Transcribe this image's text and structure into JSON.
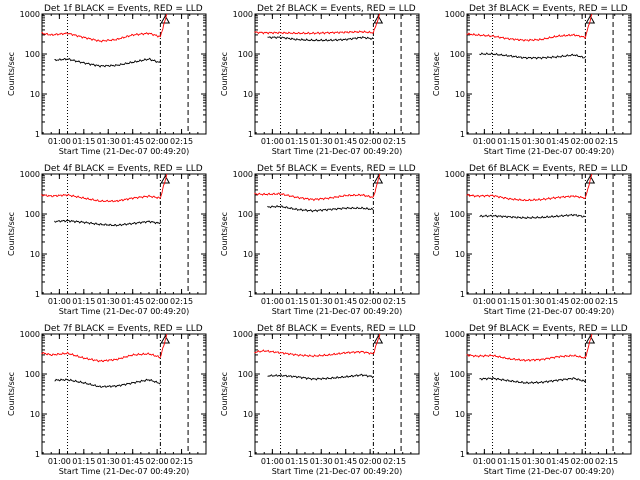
{
  "figure": {
    "xlabel": "Start Time (21-Dec-07 00:49:20)",
    "ylabel": "Counts/sec",
    "xtick_labels": [
      "01:00",
      "01:15",
      "01:30",
      "01:45",
      "02:00",
      "02:15"
    ],
    "ytick_labels": [
      "1",
      "10",
      "100",
      "1000"
    ],
    "colors": {
      "events": "#000000",
      "lld": "#ff0000",
      "axes": "#000000"
    }
  },
  "chart_data": [
    {
      "type": "line",
      "title": "Det 1f BLACK = Events, RED = LLD",
      "xlabel": "Start Time (21-Dec-07 00:49:20)",
      "ylabel": "Counts/sec",
      "y_scale": "log",
      "ylim": [
        1,
        1000
      ],
      "xlim": [
        "00:49:20",
        "02:30"
      ],
      "xticks": [
        "01:00",
        "01:15",
        "01:30",
        "01:45",
        "02:00",
        "02:15"
      ],
      "series": [
        {
          "name": "Events",
          "color": "#000000",
          "x": [
            "00:57",
            "01:05",
            "01:15",
            "01:25",
            "01:35",
            "01:45",
            "01:55",
            "02:02"
          ],
          "values": [
            70,
            75,
            60,
            50,
            52,
            62,
            75,
            60
          ]
        },
        {
          "name": "LLD",
          "color": "#ff0000",
          "x": [
            "00:49",
            "00:55",
            "01:05",
            "01:15",
            "01:25",
            "01:35",
            "01:45",
            "01:55",
            "02:02",
            "02:06"
          ],
          "values": [
            330,
            300,
            330,
            260,
            210,
            230,
            300,
            330,
            270,
            1000
          ]
        }
      ]
    },
    {
      "type": "line",
      "title": "Det 2f BLACK = Events, RED = LLD",
      "xlabel": "Start Time (21-Dec-07 00:49:20)",
      "ylabel": "Counts/sec",
      "y_scale": "log",
      "ylim": [
        1,
        1000
      ],
      "xlim": [
        "00:49:20",
        "02:30"
      ],
      "xticks": [
        "01:00",
        "01:15",
        "01:30",
        "01:45",
        "02:00",
        "02:15"
      ],
      "series": [
        {
          "name": "Events",
          "color": "#000000",
          "x": [
            "00:57",
            "01:05",
            "01:15",
            "01:25",
            "01:35",
            "01:45",
            "01:55",
            "02:02"
          ],
          "values": [
            260,
            260,
            230,
            220,
            220,
            230,
            260,
            240
          ]
        },
        {
          "name": "LLD",
          "color": "#ff0000",
          "x": [
            "00:49",
            "00:55",
            "01:05",
            "01:15",
            "01:25",
            "01:35",
            "01:45",
            "01:55",
            "02:02",
            "02:06"
          ],
          "values": [
            350,
            340,
            340,
            330,
            330,
            340,
            350,
            360,
            340,
            1000
          ]
        }
      ]
    },
    {
      "type": "line",
      "title": "Det 3f BLACK = Events, RED = LLD",
      "xlabel": "Start Time (21-Dec-07 00:49:20)",
      "ylabel": "Counts/sec",
      "y_scale": "log",
      "ylim": [
        1,
        1000
      ],
      "xlim": [
        "00:49:20",
        "02:30"
      ],
      "xticks": [
        "01:00",
        "01:15",
        "01:30",
        "01:45",
        "02:00",
        "02:15"
      ],
      "series": [
        {
          "name": "Events",
          "color": "#000000",
          "x": [
            "00:57",
            "01:05",
            "01:15",
            "01:25",
            "01:35",
            "01:45",
            "01:55",
            "02:02"
          ],
          "values": [
            100,
            100,
            90,
            80,
            80,
            85,
            95,
            80
          ]
        },
        {
          "name": "LLD",
          "color": "#ff0000",
          "x": [
            "00:49",
            "00:55",
            "01:05",
            "01:15",
            "01:25",
            "01:35",
            "01:45",
            "01:55",
            "02:02",
            "02:06"
          ],
          "values": [
            320,
            300,
            280,
            240,
            220,
            230,
            280,
            300,
            260,
            1000
          ]
        }
      ]
    },
    {
      "type": "line",
      "title": "Det 4f BLACK = Events, RED = LLD",
      "xlabel": "Start Time (21-Dec-07 00:49:20)",
      "ylabel": "Counts/sec",
      "y_scale": "log",
      "ylim": [
        1,
        1000
      ],
      "xlim": [
        "00:49:20",
        "02:30"
      ],
      "xticks": [
        "01:00",
        "01:15",
        "01:30",
        "01:45",
        "02:00",
        "02:15"
      ],
      "series": [
        {
          "name": "Events",
          "color": "#000000",
          "x": [
            "00:57",
            "01:05",
            "01:15",
            "01:25",
            "01:35",
            "01:45",
            "01:55",
            "02:02"
          ],
          "values": [
            65,
            68,
            62,
            55,
            52,
            58,
            65,
            58
          ]
        },
        {
          "name": "LLD",
          "color": "#ff0000",
          "x": [
            "00:49",
            "00:55",
            "01:05",
            "01:15",
            "01:25",
            "01:35",
            "01:45",
            "01:55",
            "02:02",
            "02:06"
          ],
          "values": [
            300,
            280,
            300,
            250,
            210,
            210,
            250,
            280,
            250,
            1000
          ]
        }
      ]
    },
    {
      "type": "line",
      "title": "Det 5f BLACK = Events, RED = LLD",
      "xlabel": "Start Time (21-Dec-07 00:49:20)",
      "ylabel": "Counts/sec",
      "y_scale": "log",
      "ylim": [
        1,
        1000
      ],
      "xlim": [
        "00:49:20",
        "02:30"
      ],
      "xticks": [
        "01:00",
        "01:15",
        "01:30",
        "01:45",
        "02:00",
        "02:15"
      ],
      "series": [
        {
          "name": "Events",
          "color": "#000000",
          "x": [
            "00:57",
            "01:05",
            "01:15",
            "01:25",
            "01:35",
            "01:45",
            "01:55",
            "02:02"
          ],
          "values": [
            150,
            155,
            130,
            120,
            130,
            140,
            140,
            130
          ]
        },
        {
          "name": "LLD",
          "color": "#ff0000",
          "x": [
            "00:49",
            "00:55",
            "01:05",
            "01:15",
            "01:25",
            "01:35",
            "01:45",
            "01:55",
            "02:02",
            "02:06"
          ],
          "values": [
            320,
            310,
            320,
            260,
            230,
            250,
            290,
            300,
            260,
            1000
          ]
        }
      ]
    },
    {
      "type": "line",
      "title": "Det 6f BLACK = Events, RED = LLD",
      "xlabel": "Start Time (21-Dec-07 00:49:20)",
      "ylabel": "Counts/sec",
      "y_scale": "log",
      "ylim": [
        1,
        1000
      ],
      "xlim": [
        "00:49:20",
        "02:30"
      ],
      "xticks": [
        "01:00",
        "01:15",
        "01:30",
        "01:45",
        "02:00",
        "02:15"
      ],
      "series": [
        {
          "name": "Events",
          "color": "#000000",
          "x": [
            "00:57",
            "01:05",
            "01:15",
            "01:25",
            "01:35",
            "01:45",
            "01:55",
            "02:02"
          ],
          "values": [
            88,
            90,
            85,
            80,
            82,
            88,
            95,
            85
          ]
        },
        {
          "name": "LLD",
          "color": "#ff0000",
          "x": [
            "00:49",
            "00:55",
            "01:05",
            "01:15",
            "01:25",
            "01:35",
            "01:45",
            "01:55",
            "02:02",
            "02:06"
          ],
          "values": [
            300,
            280,
            290,
            240,
            220,
            230,
            260,
            280,
            250,
            1000
          ]
        }
      ]
    },
    {
      "type": "line",
      "title": "Det 7f BLACK = Events, RED = LLD",
      "xlabel": "Start Time (21-Dec-07 00:49:20)",
      "ylabel": "Counts/sec",
      "y_scale": "log",
      "ylim": [
        1,
        1000
      ],
      "xlim": [
        "00:49:20",
        "02:30"
      ],
      "xticks": [
        "01:00",
        "01:15",
        "01:30",
        "01:45",
        "02:00",
        "02:15"
      ],
      "series": [
        {
          "name": "Events",
          "color": "#000000",
          "x": [
            "00:57",
            "01:05",
            "01:15",
            "01:25",
            "01:35",
            "01:45",
            "01:55",
            "02:02"
          ],
          "values": [
            70,
            72,
            60,
            48,
            50,
            60,
            72,
            58
          ]
        },
        {
          "name": "LLD",
          "color": "#ff0000",
          "x": [
            "00:49",
            "00:55",
            "01:05",
            "01:15",
            "01:25",
            "01:35",
            "01:45",
            "01:55",
            "02:02",
            "02:06"
          ],
          "values": [
            340,
            300,
            330,
            250,
            210,
            230,
            300,
            320,
            260,
            1000
          ]
        }
      ]
    },
    {
      "type": "line",
      "title": "Det 8f BLACK = Events, RED = LLD",
      "xlabel": "Start Time (21-Dec-07 00:49:20)",
      "ylabel": "Counts/sec",
      "y_scale": "log",
      "ylim": [
        1,
        1000
      ],
      "xlim": [
        "00:49:20",
        "02:30"
      ],
      "xticks": [
        "01:00",
        "01:15",
        "01:30",
        "01:45",
        "02:00",
        "02:15"
      ],
      "series": [
        {
          "name": "Events",
          "color": "#000000",
          "x": [
            "00:57",
            "01:05",
            "01:15",
            "01:25",
            "01:35",
            "01:45",
            "01:55",
            "02:02"
          ],
          "values": [
            90,
            92,
            85,
            75,
            78,
            85,
            95,
            85
          ]
        },
        {
          "name": "LLD",
          "color": "#ff0000",
          "x": [
            "00:49",
            "00:55",
            "01:05",
            "01:15",
            "01:25",
            "01:35",
            "01:45",
            "01:55",
            "02:02",
            "02:06"
          ],
          "values": [
            350,
            380,
            340,
            300,
            280,
            300,
            340,
            360,
            320,
            1000
          ]
        }
      ]
    },
    {
      "type": "line",
      "title": "Det 9f BLACK = Events, RED = LLD",
      "xlabel": "Start Time (21-Dec-07 00:49:20)",
      "ylabel": "Counts/sec",
      "y_scale": "log",
      "ylim": [
        1,
        1000
      ],
      "xlim": [
        "00:49:20",
        "02:30"
      ],
      "xticks": [
        "01:00",
        "01:15",
        "01:30",
        "01:45",
        "02:00",
        "02:15"
      ],
      "series": [
        {
          "name": "Events",
          "color": "#000000",
          "x": [
            "00:57",
            "01:05",
            "01:15",
            "01:25",
            "01:35",
            "01:45",
            "01:55",
            "02:02"
          ],
          "values": [
            75,
            78,
            68,
            60,
            62,
            70,
            78,
            65
          ]
        },
        {
          "name": "LLD",
          "color": "#ff0000",
          "x": [
            "00:49",
            "00:55",
            "01:05",
            "01:15",
            "01:25",
            "01:35",
            "01:45",
            "01:55",
            "02:02",
            "02:06"
          ],
          "values": [
            300,
            280,
            290,
            240,
            220,
            230,
            270,
            290,
            250,
            1000
          ]
        }
      ]
    }
  ]
}
